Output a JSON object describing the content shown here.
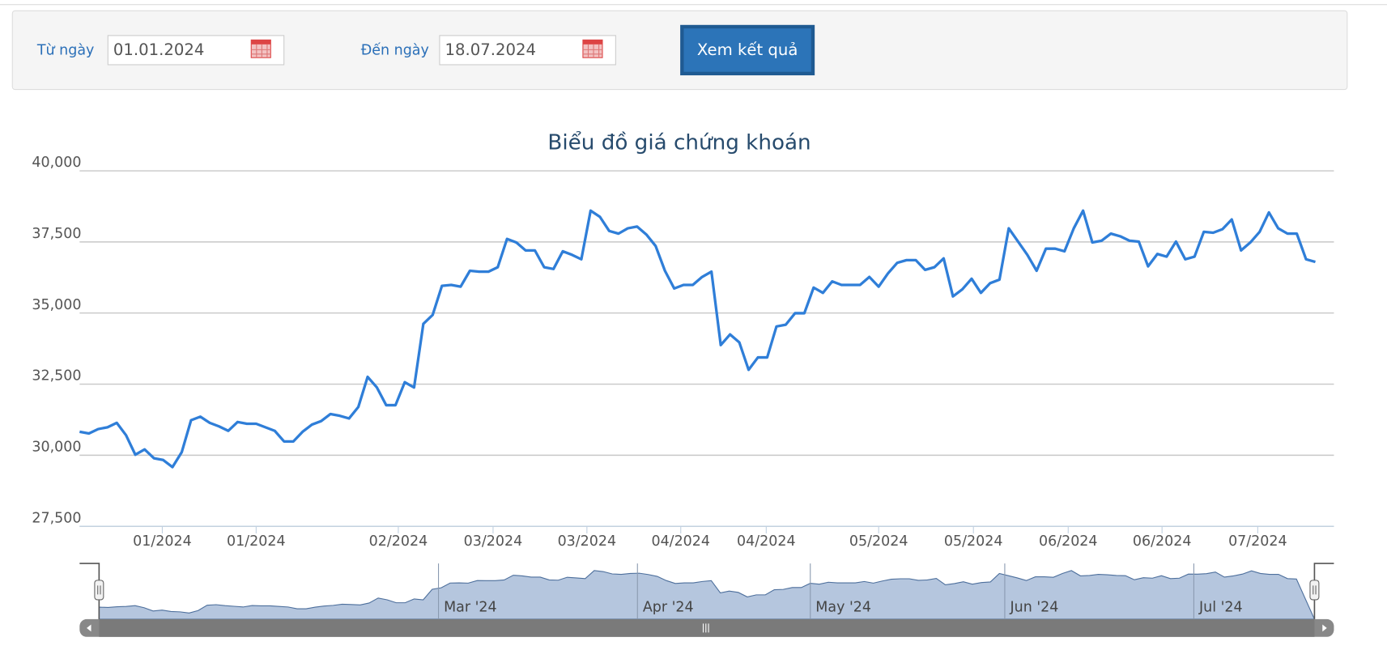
{
  "form": {
    "from_label": "Từ ngày",
    "from_value": "01.01.2024",
    "to_label": "Đến ngày",
    "to_value": "18.07.2024",
    "button": "Xem kết quả"
  },
  "chart_data": {
    "type": "line",
    "title": "Biểu đồ giá chứng khoán",
    "color": "#2f7ed8",
    "grid": true,
    "values": [
      30827,
      30765,
      30920,
      30982,
      31138,
      30703,
      30019,
      30205,
      29894,
      29832,
      29583,
      30112,
      31232,
      31356,
      31138,
      31014,
      30858,
      31169,
      31107,
      31107,
      30982,
      30858,
      30485,
      30485,
      30827,
      31076,
      31200,
      31449,
      31387,
      31294,
      31698,
      32755,
      32382,
      31760,
      31760,
      32569,
      32382,
      34621,
      34932,
      35958,
      35989,
      35927,
      36486,
      36455,
      36455,
      36611,
      37606,
      37481,
      37202,
      37202,
      36611,
      36549,
      37171,
      37046,
      36890,
      38601,
      38383,
      37885,
      37793,
      37979,
      38041,
      37761,
      37357,
      36486,
      35864,
      35989,
      35989,
      36269,
      36455,
      33874,
      34248,
      33968,
      33004,
      33440,
      33440,
      34528,
      34590,
      34994,
      34994,
      35896,
      35709,
      36113,
      35989,
      35989,
      35989,
      36269,
      35927,
      36393,
      36766,
      36859,
      36859,
      36517,
      36611,
      36922,
      35584,
      35833,
      36206,
      35709,
      36051,
      36175,
      37979,
      37512,
      37046,
      36486,
      37264,
      37264,
      37171,
      37979,
      38601,
      37481,
      37544,
      37793,
      37699,
      37544,
      37512,
      36642,
      37077,
      36984,
      37512,
      36890,
      36984,
      37855,
      37824,
      37948,
      38290,
      37202,
      37481,
      37855,
      38539,
      37979,
      37793,
      37793,
      36890,
      36797
    ],
    "xlim": [
      0,
      135
    ],
    "xticks": [
      {
        "value": 8.9,
        "label": "01/2024"
      },
      {
        "value": 19.0,
        "label": "01/2024"
      },
      {
        "value": 34.3,
        "label": "02/2024"
      },
      {
        "value": 44.5,
        "label": "03/2024"
      },
      {
        "value": 54.6,
        "label": "03/2024"
      },
      {
        "value": 64.7,
        "label": "04/2024"
      },
      {
        "value": 73.9,
        "label": "04/2024"
      },
      {
        "value": 86.0,
        "label": "05/2024"
      },
      {
        "value": 96.2,
        "label": "05/2024"
      },
      {
        "value": 106.4,
        "label": "06/2024"
      },
      {
        "value": 116.5,
        "label": "06/2024"
      },
      {
        "value": 126.8,
        "label": "07/2024"
      }
    ],
    "ylim": [
      27500,
      40000
    ],
    "yticks": [
      {
        "value": 27500,
        "label": "27,500"
      },
      {
        "value": 30000,
        "label": "30,000"
      },
      {
        "value": 32500,
        "label": "32,500"
      },
      {
        "value": 35000,
        "label": "35,000"
      },
      {
        "value": 37500,
        "label": "37,500"
      },
      {
        "value": 40000,
        "label": "40,000"
      }
    ],
    "navigator_ticks": [
      {
        "value": 37.7,
        "label": "Mar '24"
      },
      {
        "value": 59.8,
        "label": "Apr '24"
      },
      {
        "value": 79.0,
        "label": "May '24"
      },
      {
        "value": 100.6,
        "label": "Jun '24"
      },
      {
        "value": 121.6,
        "label": "Jul '24"
      }
    ]
  }
}
